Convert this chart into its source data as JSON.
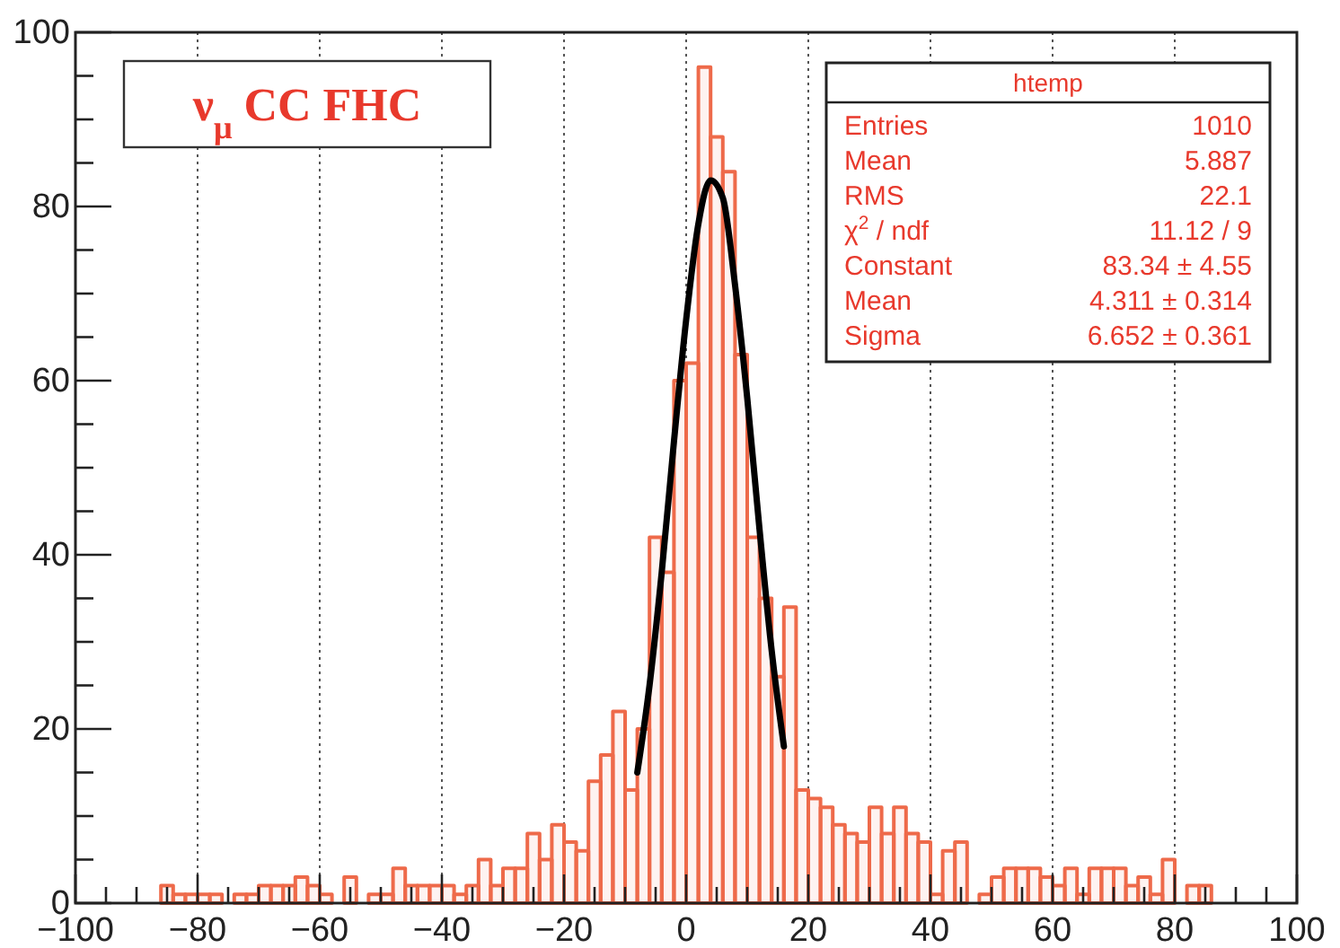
{
  "chart_data": {
    "type": "histogram",
    "bins": [
      -100,
      -98,
      -96,
      -94,
      -92,
      -90,
      -88,
      -86,
      -84,
      -82,
      -80,
      -78,
      -76,
      -74,
      -72,
      -70,
      -68,
      -66,
      -64,
      -62,
      -60,
      -58,
      -56,
      -54,
      -52,
      -50,
      -48,
      -46,
      -44,
      -42,
      -40,
      -38,
      -36,
      -34,
      -32,
      -30,
      -28,
      -26,
      -24,
      -22,
      -20,
      -18,
      -16,
      -14,
      -12,
      -10,
      -8,
      -6,
      -4,
      -2,
      0,
      2,
      4,
      6,
      8,
      10,
      12,
      14,
      16,
      18,
      20,
      22,
      24,
      26,
      28,
      30,
      32,
      34,
      36,
      38,
      40,
      42,
      44,
      46,
      48,
      50,
      52,
      54,
      56,
      58,
      60,
      62,
      64,
      66,
      68,
      70,
      72,
      74,
      76,
      78,
      80,
      82,
      84,
      86,
      88,
      90,
      92,
      94,
      96,
      98,
      100
    ],
    "series": [
      {
        "color": "#ee6a4a",
        "values": [
          0,
          0,
          0,
          0,
          0,
          0,
          0,
          2,
          1,
          1,
          1,
          1,
          0,
          1,
          1,
          2,
          2,
          2,
          3,
          2,
          1,
          0,
          3,
          0,
          1,
          1,
          4,
          2,
          2,
          2,
          2,
          1,
          2,
          5,
          2,
          4,
          4,
          8,
          5,
          9,
          7,
          6,
          14,
          17,
          22,
          13,
          20,
          42,
          38,
          60,
          62,
          96,
          88,
          84,
          63,
          42,
          35,
          26,
          34,
          13,
          12,
          11,
          9,
          8,
          7,
          11,
          8,
          11,
          8,
          7,
          1,
          6,
          7,
          0,
          1,
          3,
          4,
          4,
          4,
          3,
          2,
          4,
          1,
          4,
          4,
          4,
          2,
          3,
          1,
          5,
          0,
          2,
          2,
          0,
          0,
          0,
          0,
          0,
          0,
          0
        ]
      },
      {
        "type": "line",
        "color": "#000000",
        "x": [
          -8,
          -6,
          -4,
          -2,
          0,
          2,
          4,
          6,
          8,
          10,
          12,
          14,
          16
        ],
        "values": [
          15,
          25,
          38,
          53,
          67,
          78,
          83,
          81,
          71,
          58,
          43,
          29,
          18
        ]
      }
    ],
    "xlim": [
      -100,
      100
    ],
    "xticks": [
      -100,
      {
        "value": -95,
        "label": null
      },
      {
        "value": -90,
        "label": null
      },
      {
        "value": -85,
        "label": null
      },
      -80,
      {
        "value": -75,
        "label": null
      },
      {
        "value": -70,
        "label": null
      },
      {
        "value": -65,
        "label": null
      },
      -60,
      {
        "value": -55,
        "label": null
      },
      {
        "value": -50,
        "label": null
      },
      {
        "value": -45,
        "label": null
      },
      -40,
      {
        "value": -35,
        "label": null
      },
      {
        "value": -30,
        "label": null
      },
      {
        "value": -25,
        "label": null
      },
      -20,
      {
        "value": -15,
        "label": null
      },
      {
        "value": -10,
        "label": null
      },
      {
        "value": -5,
        "label": null
      },
      0,
      {
        "value": 5,
        "label": null
      },
      {
        "value": 10,
        "label": null
      },
      {
        "value": 15,
        "label": null
      },
      20,
      {
        "value": 25,
        "label": null
      },
      {
        "value": 30,
        "label": null
      },
      {
        "value": 35,
        "label": null
      },
      40,
      {
        "value": 45,
        "label": null
      },
      {
        "value": 50,
        "label": null
      },
      {
        "value": 55,
        "label": null
      },
      60,
      {
        "value": 65,
        "label": null
      },
      {
        "value": 70,
        "label": null
      },
      {
        "value": 75,
        "label": null
      },
      80,
      {
        "value": 85,
        "label": null
      },
      {
        "value": 90,
        "label": null
      },
      {
        "value": 95,
        "label": null
      },
      100
    ],
    "ylim": [
      0,
      100
    ],
    "yticks": [
      0,
      {
        "value": 5,
        "label": null
      },
      {
        "value": 10,
        "label": null
      },
      {
        "value": 15,
        "label": null
      },
      20,
      {
        "value": 25,
        "label": null
      },
      {
        "value": 30,
        "label": null
      },
      {
        "value": 35,
        "label": null
      },
      40,
      {
        "value": 45,
        "label": null
      },
      {
        "value": 50,
        "label": null
      },
      {
        "value": 55,
        "label": null
      },
      60,
      {
        "value": 65,
        "label": null
      },
      {
        "value": 70,
        "label": null
      },
      {
        "value": 75,
        "label": null
      },
      80,
      {
        "value": 85,
        "label": null
      },
      {
        "value": 90,
        "label": null
      },
      {
        "value": 95,
        "label": null
      },
      100
    ],
    "grid": "x",
    "annotations": [
      "ν$_{μ}$ CC FHC",
      "htemp",
      "Entries",
      "1010",
      "Mean",
      "5.887",
      "RMS",
      "22.1",
      "χ$^{2}$ / ndf",
      "11.12 / 9",
      "Constant",
      "83.34 ± 4.55",
      "Mean",
      "4.311 ± 0.314",
      "Sigma",
      "6.652 ± 0.361"
    ]
  }
}
